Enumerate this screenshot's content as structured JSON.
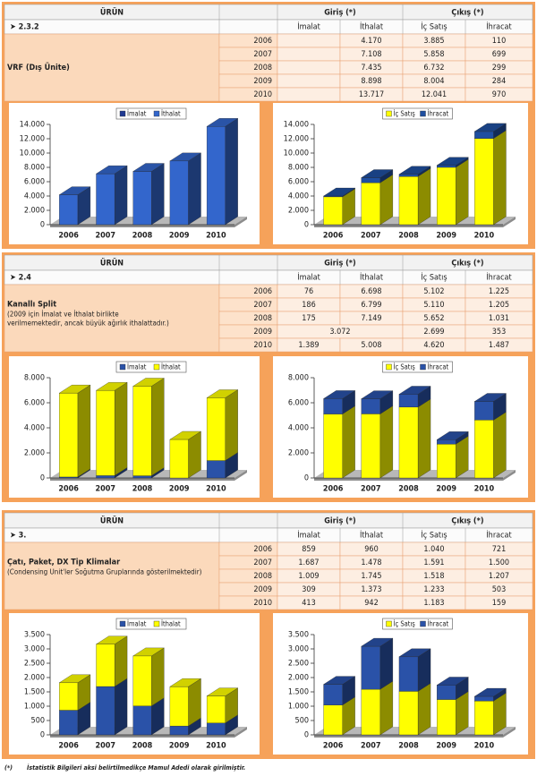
{
  "sections": [
    {
      "header": {
        "product": "ÜRÜN",
        "in": "Giriş (*)",
        "out": "Çıkış (*)",
        "cols": [
          "İmalat",
          "İthalat",
          "İç Satış",
          "İhracat"
        ]
      },
      "code": "➤ 2.3.2",
      "product": "VRF (Dış Ünite)",
      "rows": [
        {
          "year": "2006",
          "ithalat": "4.170",
          "ic": "3.885",
          "ihracat": "110"
        },
        {
          "year": "2007",
          "ithalat": "7.108",
          "ic": "5.858",
          "ihracat": "699"
        },
        {
          "year": "2008",
          "ithalat": "7.435",
          "ic": "6.732",
          "ihracat": "299"
        },
        {
          "year": "2009",
          "ithalat": "8.898",
          "ic": "8.004",
          "ihracat": "284"
        },
        {
          "year": "2010",
          "ithalat": "13.717",
          "ic": "12.041",
          "ihracat": "970"
        }
      ]
    },
    {
      "header": {
        "product": "ÜRÜN",
        "in": "Giriş (*)",
        "out": "Çıkış (*)",
        "cols": [
          "İmalat",
          "İthalat",
          "İç Satış",
          "İhracat"
        ]
      },
      "code": "➤ 2.4",
      "product": "Kanallı Split",
      "note": [
        "(2009 için İmalat ve İthalat birlikte",
        "verilmemektedir, ancak büyük ağırlık ithalattadır.)"
      ],
      "rows": [
        {
          "year": "2006",
          "imalat": "76",
          "ithalat": "6.698",
          "ic": "5.102",
          "ihracat": "1.225"
        },
        {
          "year": "2007",
          "imalat": "186",
          "ithalat": "6.799",
          "ic": "5.110",
          "ihracat": "1.205"
        },
        {
          "year": "2008",
          "imalat": "175",
          "ithalat": "7.149",
          "ic": "5.652",
          "ihracat": "1.031"
        },
        {
          "year": "2009",
          "merged": "3.072",
          "ic": "2.699",
          "ihracat": "353"
        },
        {
          "year": "2010",
          "imalat": "1.389",
          "ithalat": "5.008",
          "ic": "4.620",
          "ihracat": "1.487"
        }
      ]
    },
    {
      "header": {
        "product": "ÜRÜN",
        "in": "Giriş (*)",
        "out": "Çıkış (*)",
        "cols": [
          "İmalat",
          "İthalat",
          "İç Satış",
          "İhracat"
        ]
      },
      "code": "➤ 3.",
      "product": "Çatı, Paket, DX Tip Klimalar",
      "note": [
        "(Condensing Unit'ler Soğutma Gruplarında gösterilmektedir)"
      ],
      "rows": [
        {
          "year": "2006",
          "imalat": "859",
          "ithalat": "960",
          "ic": "1.040",
          "ihracat": "721"
        },
        {
          "year": "2007",
          "imalat": "1.687",
          "ithalat": "1.478",
          "ic": "1.591",
          "ihracat": "1.500"
        },
        {
          "year": "2008",
          "imalat": "1.009",
          "ithalat": "1.745",
          "ic": "1.518",
          "ihracat": "1.207"
        },
        {
          "year": "2009",
          "imalat": "309",
          "ithalat": "1.373",
          "ic": "1.233",
          "ihracat": "503"
        },
        {
          "year": "2010",
          "imalat": "413",
          "ithalat": "942",
          "ic": "1.183",
          "ihracat": "159"
        }
      ]
    }
  ],
  "chart_data": [
    {
      "type": "bar",
      "stacked": true,
      "categories": [
        "2006",
        "2007",
        "2008",
        "2009",
        "2010"
      ],
      "series": [
        {
          "name": "İmalat",
          "color": "#1f3a93",
          "values": [
            null,
            null,
            null,
            null,
            null
          ]
        },
        {
          "name": "İthalat",
          "color": "#3366cc",
          "values": [
            4170,
            7108,
            7435,
            8898,
            13717
          ]
        }
      ],
      "ylim": [
        0,
        14000
      ],
      "yticks": [
        0,
        {
          "value": 2000,
          "label": "2.000"
        },
        {
          "value": 4000,
          "label": "4.000"
        },
        {
          "value": 6000,
          "label": "6.000"
        },
        {
          "value": 8000,
          "label": "8.000"
        },
        {
          "value": 10000,
          "label": "10.000"
        },
        {
          "value": 12000,
          "label": "12.000"
        },
        {
          "value": 14000,
          "label": "14.000"
        }
      ]
    },
    {
      "type": "bar",
      "stacked": true,
      "categories": [
        "2006",
        "2007",
        "2008",
        "2009",
        "2010"
      ],
      "series": [
        {
          "name": "İç Satış",
          "color": "#ffff00",
          "values": [
            3885,
            5858,
            6732,
            8004,
            12041
          ]
        },
        {
          "name": "İhracat",
          "color": "#1f4fa0",
          "values": [
            110,
            699,
            299,
            284,
            970
          ]
        }
      ],
      "ylim": [
        0,
        14000
      ],
      "yticks": [
        0,
        {
          "value": 2000,
          "label": "2.000"
        },
        {
          "value": 4000,
          "label": "4.000"
        },
        {
          "value": 6000,
          "label": "6.000"
        },
        {
          "value": 8000,
          "label": "8.000"
        },
        {
          "value": 10000,
          "label": "10.000"
        },
        {
          "value": 12000,
          "label": "12.000"
        },
        {
          "value": 14000,
          "label": "14.000"
        }
      ]
    },
    {
      "type": "bar",
      "stacked": true,
      "categories": [
        "2006",
        "2007",
        "2008",
        "2009",
        "2010"
      ],
      "series": [
        {
          "name": "İmalat",
          "color": "#2a52a8",
          "values": [
            76,
            186,
            175,
            null,
            1389
          ]
        },
        {
          "name": "İthalat",
          "color": "#ffff00",
          "values": [
            6698,
            6799,
            7149,
            3072,
            5008
          ]
        }
      ],
      "ylim": [
        0,
        8000
      ],
      "yticks": [
        0,
        {
          "value": 2000,
          "label": "2.000"
        },
        {
          "value": 4000,
          "label": "4.000"
        },
        {
          "value": 6000,
          "label": "6.000"
        },
        {
          "value": 8000,
          "label": "8.000"
        }
      ]
    },
    {
      "type": "bar",
      "stacked": true,
      "categories": [
        "2006",
        "2007",
        "2008",
        "2009",
        "2010"
      ],
      "series": [
        {
          "name": "İç Satış",
          "color": "#ffff00",
          "values": [
            5102,
            5110,
            5652,
            2699,
            4620
          ]
        },
        {
          "name": "İhracat",
          "color": "#2a52a8",
          "values": [
            1225,
            1205,
            1031,
            353,
            1487
          ]
        }
      ],
      "ylim": [
        0,
        8000
      ],
      "yticks": [
        0,
        {
          "value": 2000,
          "label": "2.000"
        },
        {
          "value": 4000,
          "label": "4.000"
        },
        {
          "value": 6000,
          "label": "6.000"
        },
        {
          "value": 8000,
          "label": "8.000"
        }
      ]
    },
    {
      "type": "bar",
      "stacked": true,
      "categories": [
        "2006",
        "2007",
        "2008",
        "2009",
        "2010"
      ],
      "series": [
        {
          "name": "İmalat",
          "color": "#2a52a8",
          "values": [
            859,
            1687,
            1009,
            309,
            413
          ]
        },
        {
          "name": "İthalat",
          "color": "#ffff00",
          "values": [
            960,
            1478,
            1745,
            1373,
            942
          ]
        }
      ],
      "ylim": [
        0,
        3500
      ],
      "yticks": [
        0,
        {
          "value": 500,
          "label": "500"
        },
        {
          "value": 1000,
          "label": "1.000"
        },
        {
          "value": 1500,
          "label": "1.500"
        },
        {
          "value": 2000,
          "label": "2.000"
        },
        {
          "value": 2500,
          "label": "2.500"
        },
        {
          "value": 3000,
          "label": "3.000"
        },
        {
          "value": 3500,
          "label": "3.500"
        }
      ]
    },
    {
      "type": "bar",
      "stacked": true,
      "categories": [
        "2006",
        "2007",
        "2008",
        "2009",
        "2010"
      ],
      "series": [
        {
          "name": "İç Satış",
          "color": "#ffff00",
          "values": [
            1040,
            1591,
            1518,
            1233,
            1183
          ]
        },
        {
          "name": "İhracat",
          "color": "#2a52a8",
          "values": [
            721,
            1500,
            1207,
            503,
            159
          ]
        }
      ],
      "ylim": [
        0,
        3500
      ],
      "yticks": [
        0,
        {
          "value": 500,
          "label": "500"
        },
        {
          "value": 1000,
          "label": "1.000"
        },
        {
          "value": 1500,
          "label": "1.500"
        },
        {
          "value": 2000,
          "label": "2.000"
        },
        {
          "value": 2500,
          "label": "2.500"
        },
        {
          "value": 3000,
          "label": "3.000"
        },
        {
          "value": 3500,
          "label": "3.500"
        }
      ]
    }
  ],
  "footnote": {
    "mark": "(*)",
    "text": "İstatistik Bilgileri aksi belirtilmedikçe Mamul Adedi olarak girilmiştir."
  }
}
